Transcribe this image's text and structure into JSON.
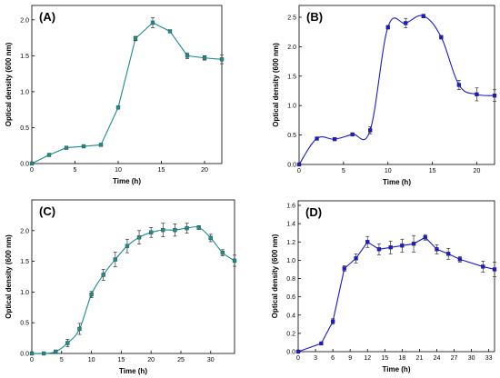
{
  "chart_data": [
    {
      "type": "line",
      "panel_label": "(A)",
      "xlabel": "Time (h)",
      "ylabel": "Optical density (600 nm)",
      "xlim": [
        0,
        22
      ],
      "ylim": [
        0,
        2.2
      ],
      "xticks": [
        0,
        5,
        10,
        15,
        20
      ],
      "yticks": [
        0.0,
        0.5,
        1.0,
        1.5,
        2.0
      ],
      "ytick_labels": [
        "0.0",
        "0.5",
        "1.0",
        "1.5",
        "2.0"
      ],
      "line_style": "straight",
      "marker": "square",
      "color": "#1d8c8c",
      "x": [
        0,
        2,
        4,
        6,
        8,
        10,
        12,
        14,
        16,
        18,
        20,
        22
      ],
      "y": [
        0.0,
        0.12,
        0.22,
        0.24,
        0.26,
        0.78,
        1.74,
        1.96,
        1.84,
        1.5,
        1.47,
        1.45
      ],
      "yerr": [
        0.01,
        0.01,
        0.01,
        0.01,
        0.01,
        0.02,
        0.03,
        0.07,
        0.02,
        0.04,
        0.03,
        0.06
      ]
    },
    {
      "type": "line",
      "panel_label": "(B)",
      "xlabel": "Time (h)",
      "ylabel": "Optical density (600 nm)",
      "xlim": [
        0,
        22
      ],
      "ylim": [
        0,
        2.7
      ],
      "xticks": [
        0,
        5,
        10,
        15,
        20
      ],
      "yticks": [
        0.0,
        0.5,
        1.0,
        1.5,
        2.0,
        2.5
      ],
      "ytick_labels": [
        "0.0",
        "0.5",
        "1.0",
        "1.5",
        "2.0",
        "2.5"
      ],
      "line_style": "smooth",
      "marker": "square",
      "color": "#1a1ad0",
      "x": [
        0,
        2,
        4,
        6,
        8,
        10,
        12,
        14,
        16,
        18,
        20,
        22
      ],
      "y": [
        0.0,
        0.44,
        0.43,
        0.51,
        0.58,
        2.33,
        2.4,
        2.52,
        2.16,
        1.35,
        1.19,
        1.17
      ],
      "yerr": [
        0.01,
        0.02,
        0.02,
        0.02,
        0.06,
        0.03,
        0.08,
        0.03,
        0.03,
        0.08,
        0.11,
        0.1
      ]
    },
    {
      "type": "line",
      "panel_label": "(C)",
      "xlabel": "Time (h)",
      "ylabel": "Optical density (600 nm)",
      "xlim": [
        0,
        34
      ],
      "ylim": [
        0,
        2.5
      ],
      "xticks": [
        0,
        5,
        10,
        15,
        20,
        25,
        30
      ],
      "yticks": [
        0.0,
        0.5,
        1.0,
        1.5,
        2.0
      ],
      "ytick_labels": [
        "0.0",
        "0.5",
        "1.0",
        "1.5",
        "2.0"
      ],
      "line_style": "smooth",
      "marker": "square",
      "color": "#1d8c8c",
      "x": [
        0,
        2,
        4,
        6,
        8,
        10,
        12,
        14,
        16,
        18,
        20,
        22,
        24,
        26,
        28,
        30,
        32,
        34
      ],
      "y": [
        0.0,
        0.0,
        0.03,
        0.17,
        0.4,
        0.96,
        1.28,
        1.53,
        1.75,
        1.89,
        1.97,
        2.01,
        2.01,
        2.04,
        2.05,
        1.88,
        1.64,
        1.51
      ],
      "yerr": [
        0.01,
        0.01,
        0.02,
        0.06,
        0.09,
        0.05,
        0.09,
        0.12,
        0.11,
        0.11,
        0.08,
        0.11,
        0.1,
        0.08,
        0.03,
        0.06,
        0.05,
        0.09
      ]
    },
    {
      "type": "line",
      "panel_label": "(D)",
      "xlabel": "Time (h)",
      "ylabel": "Optical density (600 nm)",
      "xlim": [
        0,
        34
      ],
      "ylim": [
        0,
        1.65
      ],
      "xticks": [
        0,
        3,
        6,
        9,
        12,
        15,
        18,
        21,
        24,
        27,
        30,
        33
      ],
      "yticks": [
        0.0,
        0.2,
        0.4,
        0.6,
        0.8,
        1.0,
        1.2,
        1.4,
        1.6
      ],
      "ytick_labels": [
        "0.0",
        "0.2",
        "0.4",
        "0.6",
        "0.8",
        "1.0",
        "1.2",
        "1.4",
        "1.6"
      ],
      "line_style": "straight",
      "marker": "square",
      "color": "#1a1ad0",
      "x": [
        0,
        4,
        6,
        8,
        10,
        12,
        14,
        16,
        18,
        20,
        22,
        24,
        26,
        28,
        32,
        34
      ],
      "y": [
        0.0,
        0.09,
        0.33,
        0.91,
        1.02,
        1.2,
        1.12,
        1.14,
        1.16,
        1.18,
        1.25,
        1.12,
        1.07,
        1.01,
        0.93,
        0.9
      ],
      "yerr": [
        0.01,
        0.01,
        0.03,
        0.03,
        0.05,
        0.06,
        0.06,
        0.07,
        0.07,
        0.09,
        0.03,
        0.05,
        0.06,
        0.03,
        0.06,
        0.08
      ]
    }
  ]
}
